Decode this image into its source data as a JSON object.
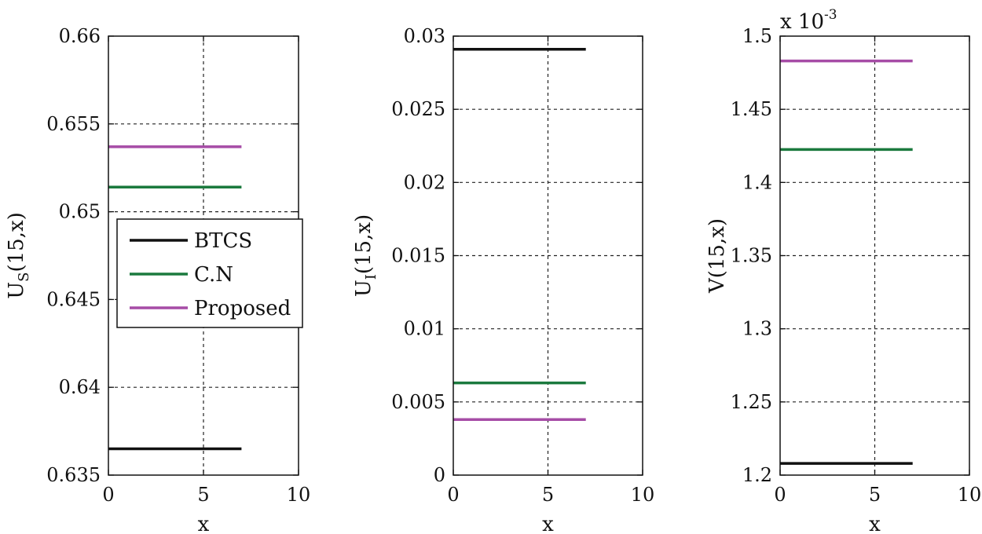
{
  "chart_data": [
    {
      "type": "line",
      "xlabel": "x",
      "ylabel": {
        "main": "U",
        "sub": "S",
        "tail": "(15,x)"
      },
      "xlim": [
        0,
        10
      ],
      "ylim": [
        0.635,
        0.66
      ],
      "xticks": [
        "0",
        "5",
        "10"
      ],
      "yticks": [
        "0.635",
        "0.64",
        "0.645",
        "0.65",
        "0.655",
        "0.66"
      ],
      "grid": true,
      "legend": {
        "placement": "center-left",
        "entries": [
          "BTCS",
          "C.N",
          "Proposed"
        ]
      },
      "series": [
        {
          "name": "BTCS",
          "color": "#111111",
          "x": [
            0,
            7
          ],
          "y": [
            0.6365,
            0.6365
          ]
        },
        {
          "name": "C.N",
          "color": "#1b7a3e",
          "x": [
            0,
            7
          ],
          "y": [
            0.6514,
            0.6514
          ]
        },
        {
          "name": "Proposed",
          "color": "#a64ca6",
          "x": [
            0,
            7
          ],
          "y": [
            0.6537,
            0.6537
          ]
        }
      ]
    },
    {
      "type": "line",
      "xlabel": "x",
      "ylabel": {
        "main": "U",
        "sub": "I",
        "tail": "(15,x)"
      },
      "xlim": [
        0,
        10
      ],
      "ylim": [
        0,
        0.03
      ],
      "xticks": [
        "0",
        "5",
        "10"
      ],
      "yticks": [
        "0",
        "0.005",
        "0.01",
        "0.015",
        "0.02",
        "0.025",
        "0.03"
      ],
      "grid": true,
      "series": [
        {
          "name": "BTCS",
          "color": "#111111",
          "x": [
            0,
            7
          ],
          "y": [
            0.0291,
            0.0291
          ]
        },
        {
          "name": "C.N",
          "color": "#1b7a3e",
          "x": [
            0,
            7
          ],
          "y": [
            0.0063,
            0.0063
          ]
        },
        {
          "name": "Proposed",
          "color": "#a64ca6",
          "x": [
            0,
            7
          ],
          "y": [
            0.0038,
            0.0038
          ]
        }
      ]
    },
    {
      "type": "line",
      "xlabel": "x",
      "ylabel": {
        "main": "V(15,x)",
        "sub": "",
        "tail": ""
      },
      "multiplier": {
        "base": "x 10",
        "exp": "-3"
      },
      "xlim": [
        0,
        10
      ],
      "ylim": [
        1.2,
        1.5
      ],
      "xticks": [
        "0",
        "5",
        "10"
      ],
      "yticks": [
        "1.2",
        "1.25",
        "1.3",
        "1.35",
        "1.4",
        "1.45",
        "1.5"
      ],
      "grid": true,
      "series": [
        {
          "name": "BTCS",
          "color": "#111111",
          "x": [
            0,
            7
          ],
          "y": [
            1.208,
            1.208
          ]
        },
        {
          "name": "C.N",
          "color": "#1b7a3e",
          "x": [
            0,
            7
          ],
          "y": [
            1.4225,
            1.4225
          ]
        },
        {
          "name": "Proposed",
          "color": "#a64ca6",
          "x": [
            0,
            7
          ],
          "y": [
            1.483,
            1.483
          ]
        }
      ]
    }
  ]
}
